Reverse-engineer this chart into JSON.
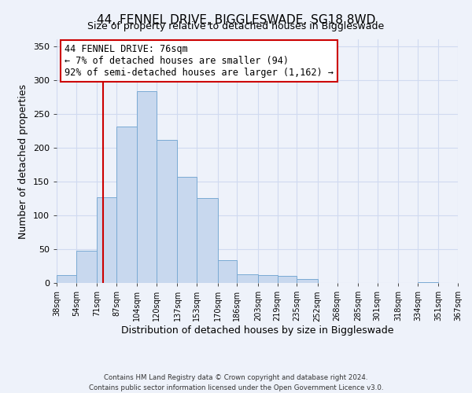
{
  "title": "44, FENNEL DRIVE, BIGGLESWADE, SG18 8WD",
  "subtitle": "Size of property relative to detached houses in Biggleswade",
  "xlabel": "Distribution of detached houses by size in Biggleswade",
  "ylabel": "Number of detached properties",
  "bins": [
    38,
    54,
    71,
    87,
    104,
    120,
    137,
    153,
    170,
    186,
    203,
    219,
    235,
    252,
    268,
    285,
    301,
    318,
    334,
    351,
    367
  ],
  "counts": [
    12,
    48,
    127,
    231,
    283,
    211,
    157,
    126,
    34,
    13,
    12,
    11,
    6,
    0,
    0,
    0,
    0,
    0,
    1,
    0
  ],
  "bar_color": "#c8d8ee",
  "bar_edge_color": "#7aaad4",
  "vline_color": "#cc0000",
  "vline_x": 76,
  "annotation_text": "44 FENNEL DRIVE: 76sqm\n← 7% of detached houses are smaller (94)\n92% of semi-detached houses are larger (1,162) →",
  "annotation_box_color": "#ffffff",
  "annotation_box_edge": "#cc0000",
  "ylim": [
    0,
    360
  ],
  "yticks": [
    0,
    50,
    100,
    150,
    200,
    250,
    300,
    350
  ],
  "footer": "Contains HM Land Registry data © Crown copyright and database right 2024.\nContains public sector information licensed under the Open Government Licence v3.0.",
  "tick_labels": [
    "38sqm",
    "54sqm",
    "71sqm",
    "87sqm",
    "104sqm",
    "120sqm",
    "137sqm",
    "153sqm",
    "170sqm",
    "186sqm",
    "203sqm",
    "219sqm",
    "235sqm",
    "252sqm",
    "268sqm",
    "285sqm",
    "301sqm",
    "318sqm",
    "334sqm",
    "351sqm",
    "367sqm"
  ],
  "background_color": "#eef2fa",
  "grid_color": "#d0daf0"
}
